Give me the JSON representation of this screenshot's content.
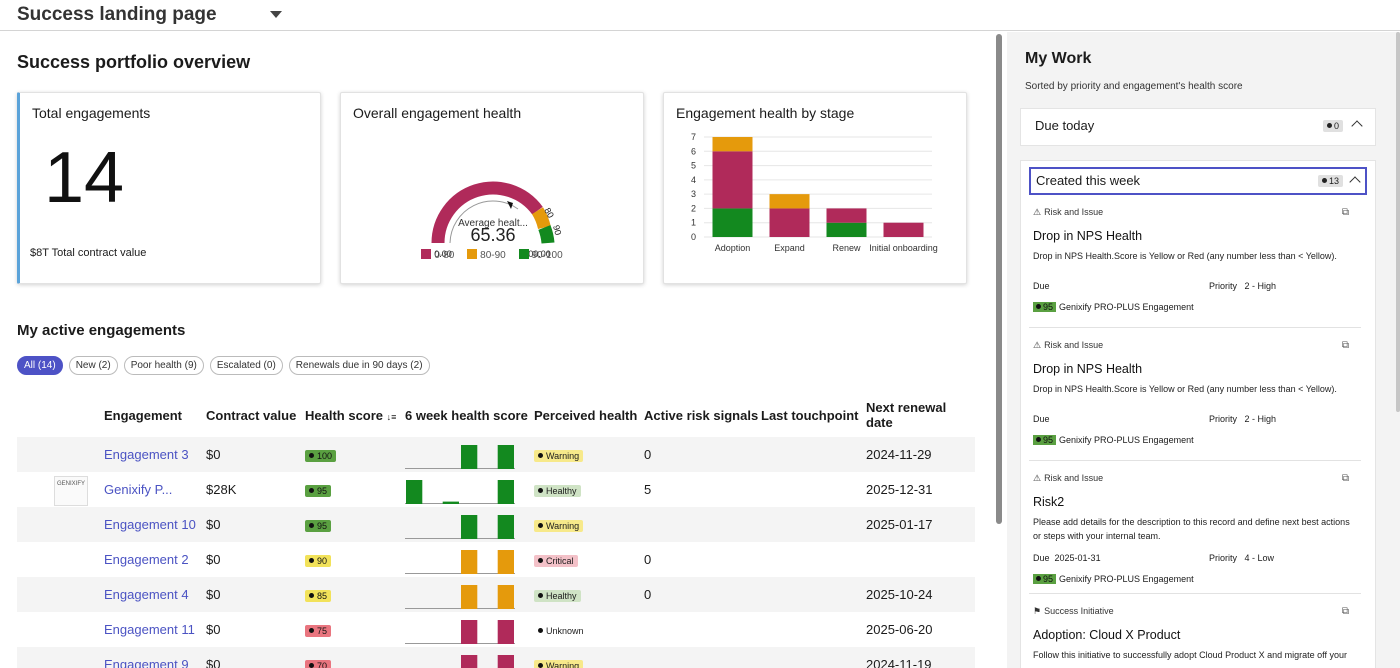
{
  "topbar": {
    "title": "Success landing page"
  },
  "overview": {
    "heading": "Success portfolio overview",
    "total": {
      "title": "Total engagements",
      "value": "14",
      "subtitle": "$8T Total contract value"
    },
    "health": {
      "title": "Overall engagement health",
      "gauge_label": "Average healt...",
      "gauge_value": "65.36",
      "gauge_min": "0.00",
      "gauge_max": "100.00",
      "tick_80": "80",
      "tick_90": "90",
      "legend": [
        {
          "label": "0-80",
          "color": "#b02a5a"
        },
        {
          "label": "80-90",
          "color": "#e59a0c"
        },
        {
          "label": "90-100",
          "color": "#13891f"
        }
      ]
    },
    "stage_chart_title": "Engagement health by stage"
  },
  "chart_data": [
    {
      "type": "bar",
      "title": "Engagement health by stage",
      "stacked": true,
      "categories": [
        "Adoption",
        "Expand",
        "Renew",
        "Initial onboarding"
      ],
      "series": [
        {
          "name": "90-100",
          "color": "#13891f",
          "values": [
            2,
            0,
            1,
            0
          ]
        },
        {
          "name": "0-80",
          "color": "#b02a5a",
          "values": [
            4,
            2,
            1,
            1
          ]
        },
        {
          "name": "80-90",
          "color": "#e59a0c",
          "values": [
            1,
            1,
            0,
            0
          ]
        }
      ],
      "yticks": [
        "0",
        "1",
        "2",
        "3",
        "4",
        "5",
        "6",
        "7"
      ],
      "ylim": [
        0,
        7
      ],
      "grid": true
    }
  ],
  "active": {
    "heading": "My active engagements",
    "filters": [
      "All (14)",
      "New (2)",
      "Poor health (9)",
      "Escalated (0)",
      "Renewals due in 90 days (2)"
    ],
    "columns": [
      "Engagement",
      "Contract value",
      "Health score",
      "6 week health score",
      "Perceived health",
      "Active risk signals",
      "Last touchpoint",
      "Next renewal date"
    ],
    "logo_text": "GENIXIFY",
    "rows": [
      {
        "name": "Engagement 3",
        "value": "$0",
        "score": "100",
        "score_color": "#5aa041",
        "spark": [
          0,
          0,
          0,
          1,
          0,
          1
        ],
        "spark_color": "#13891f",
        "perceived": "Warning",
        "perceived_color": "#f7e98a",
        "risk": "0",
        "touch": "",
        "renewal": "2024-11-29"
      },
      {
        "name": "Genixify P...",
        "value": "$28K",
        "score": "95",
        "score_color": "#5aa041",
        "spark": [
          1,
          0,
          0.1,
          0,
          0,
          1
        ],
        "spark_color": "#13891f",
        "perceived": "Healthy",
        "perceived_color": "#cfe3c5",
        "risk": "5",
        "touch": "",
        "renewal": "2025-12-31",
        "logo": true
      },
      {
        "name": "Engagement 10",
        "value": "$0",
        "score": "95",
        "score_color": "#5aa041",
        "spark": [
          0,
          0,
          0,
          1,
          0,
          1
        ],
        "spark_color": "#13891f",
        "perceived": "Warning",
        "perceived_color": "#f7e98a",
        "risk": "",
        "touch": "",
        "renewal": "2025-01-17"
      },
      {
        "name": "Engagement 2",
        "value": "$0",
        "score": "90",
        "score_color": "#f2e25a",
        "spark": [
          0,
          0,
          0,
          1,
          0,
          1
        ],
        "spark_color": "#e59a0c",
        "perceived": "Critical",
        "perceived_color": "#f3c1c8",
        "risk": "0",
        "touch": "",
        "renewal": ""
      },
      {
        "name": "Engagement 4",
        "value": "$0",
        "score": "85",
        "score_color": "#f2e25a",
        "spark": [
          0,
          0,
          0,
          1,
          0,
          1
        ],
        "spark_color": "#e59a0c",
        "perceived": "Healthy",
        "perceived_color": "#cfe3c5",
        "risk": "0",
        "touch": "",
        "renewal": "2025-10-24"
      },
      {
        "name": "Engagement 11",
        "value": "$0",
        "score": "75",
        "score_color": "#e9757f",
        "spark": [
          0,
          0,
          0,
          1,
          0,
          1
        ],
        "spark_color": "#b02a5a",
        "perceived": "Unknown",
        "perceived_color": "transparent",
        "risk": "",
        "touch": "",
        "renewal": "2025-06-20"
      },
      {
        "name": "Engagement 9",
        "value": "$0",
        "score": "70",
        "score_color": "#e9757f",
        "spark": [
          0,
          0,
          0,
          1,
          0,
          1
        ],
        "spark_color": "#b02a5a",
        "perceived": "Warning",
        "perceived_color": "#f7e98a",
        "risk": "",
        "touch": "",
        "renewal": "2024-11-19"
      }
    ]
  },
  "mywork": {
    "heading": "My Work",
    "sorted": "Sorted by priority and engagement's health score",
    "due_today": {
      "label": "Due today",
      "count": "0"
    },
    "created_week": {
      "label": "Created this week",
      "count": "13"
    },
    "items": [
      {
        "type": "Risk and Issue",
        "title": "Drop in NPS Health",
        "desc": "Drop in NPS Health.Score is Yellow or Red (any number less than < Yellow).",
        "due_label": "Due",
        "due_value": "",
        "priority_label": "Priority",
        "priority_value": "2 - High",
        "score": "95",
        "engagement": "Genixify PRO-PLUS Engagement"
      },
      {
        "type": "Risk and Issue",
        "title": "Drop in NPS Health",
        "desc": "Drop in NPS Health.Score is Yellow or Red (any number less than < Yellow).",
        "due_label": "Due",
        "due_value": "",
        "priority_label": "Priority",
        "priority_value": "2 - High",
        "score": "95",
        "engagement": "Genixify PRO-PLUS Engagement"
      },
      {
        "type": "Risk and Issue",
        "title": "Risk2",
        "desc": "Please add details for the description to this record and define next best actions or steps with your internal team.",
        "due_label": "Due",
        "due_value": "2025-01-31",
        "priority_label": "Priority",
        "priority_value": "4 - Low",
        "score": "95",
        "engagement": "Genixify PRO-PLUS Engagement"
      },
      {
        "type": "Success Initiative",
        "title": "Adoption: Cloud X Product",
        "desc": "Follow this initiative to successfully adopt Cloud Product X and migrate off your"
      }
    ]
  }
}
